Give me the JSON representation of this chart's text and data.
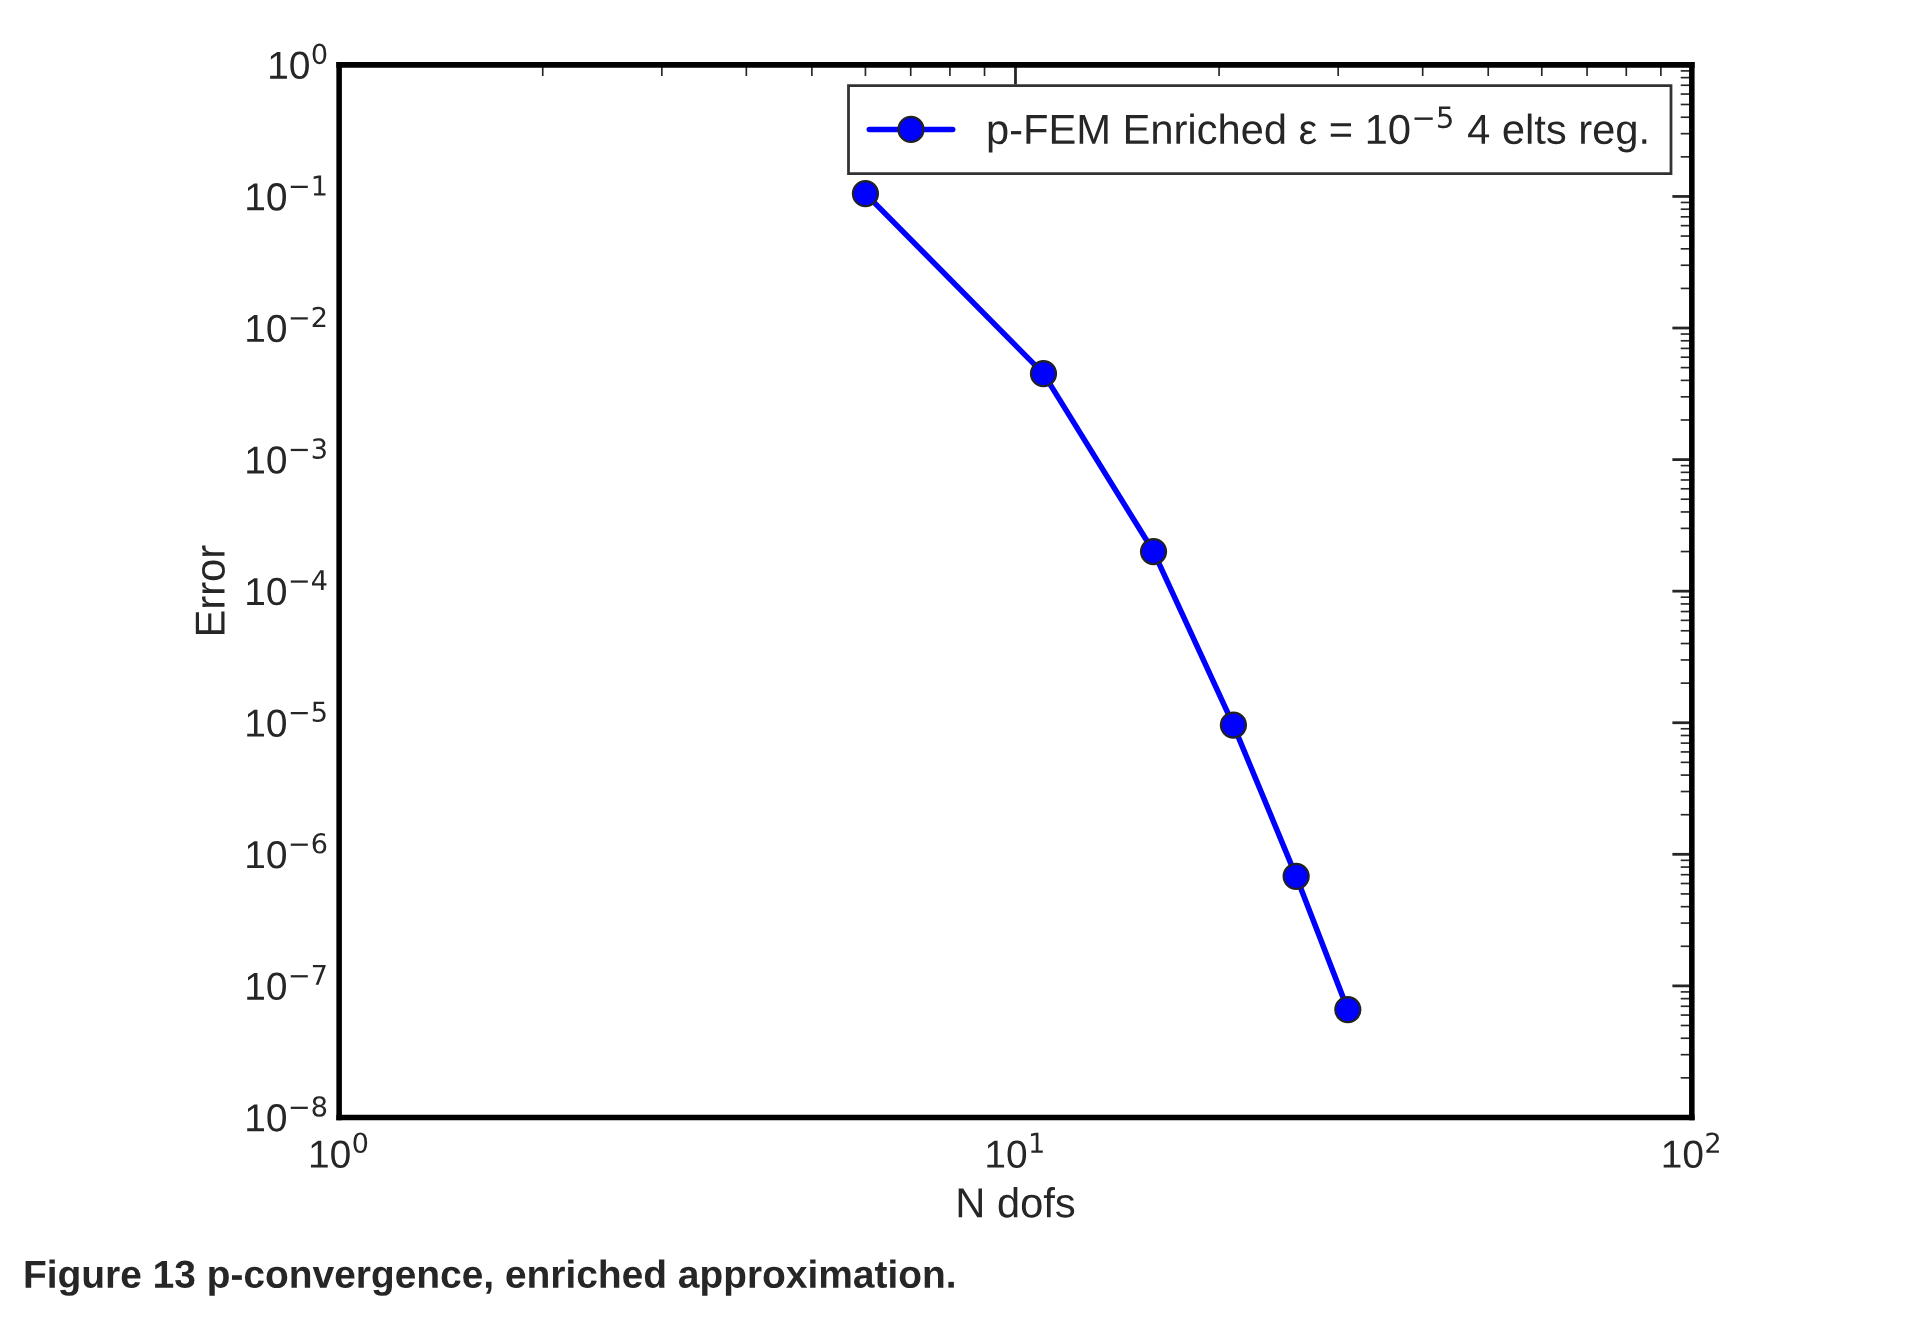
{
  "chart_data": {
    "type": "line",
    "xlabel": "N dofs",
    "ylabel": "Error",
    "log": "xy",
    "x": [
      6,
      11,
      16,
      21,
      26,
      31
    ],
    "series": [
      {
        "name": "p-FEM Enriched ε = 10$^{−5}$ 4 elts reg.",
        "color": "#0000ff",
        "values": [
          0.105,
          0.0045,
          0.0002,
          9.6e-06,
          6.8e-07,
          6.6e-08
        ]
      }
    ],
    "xlim": [
      1,
      100
    ],
    "xticks": [
      {
        "value": 1,
        "label": "10$^{0}$"
      },
      {
        "value": 10,
        "label": "10$^{1}$"
      },
      {
        "value": 100,
        "label": "10$^{2}$"
      }
    ],
    "ylim": [
      1e-08,
      1
    ],
    "yticks": [
      {
        "value": 1e-08,
        "label": "10$^{−8}$"
      },
      {
        "value": 1e-07,
        "label": "10$^{−7}$"
      },
      {
        "value": 1e-06,
        "label": "10$^{−6}$"
      },
      {
        "value": 1e-05,
        "label": "10$^{−5}$"
      },
      {
        "value": 0.0001,
        "label": "10$^{−4}$"
      },
      {
        "value": 0.001,
        "label": "10$^{−3}$"
      },
      {
        "value": 0.01,
        "label": "10$^{−2}$"
      },
      {
        "value": 0.1,
        "label": "10$^{−1}$"
      },
      {
        "value": 1,
        "label": "10$^{0}$"
      }
    ],
    "marker": "circle",
    "line_style": "solid",
    "legend": "top right",
    "grid": false,
    "annotations": [
      "Figure 13 p-convergence, enriched approximation."
    ]
  }
}
